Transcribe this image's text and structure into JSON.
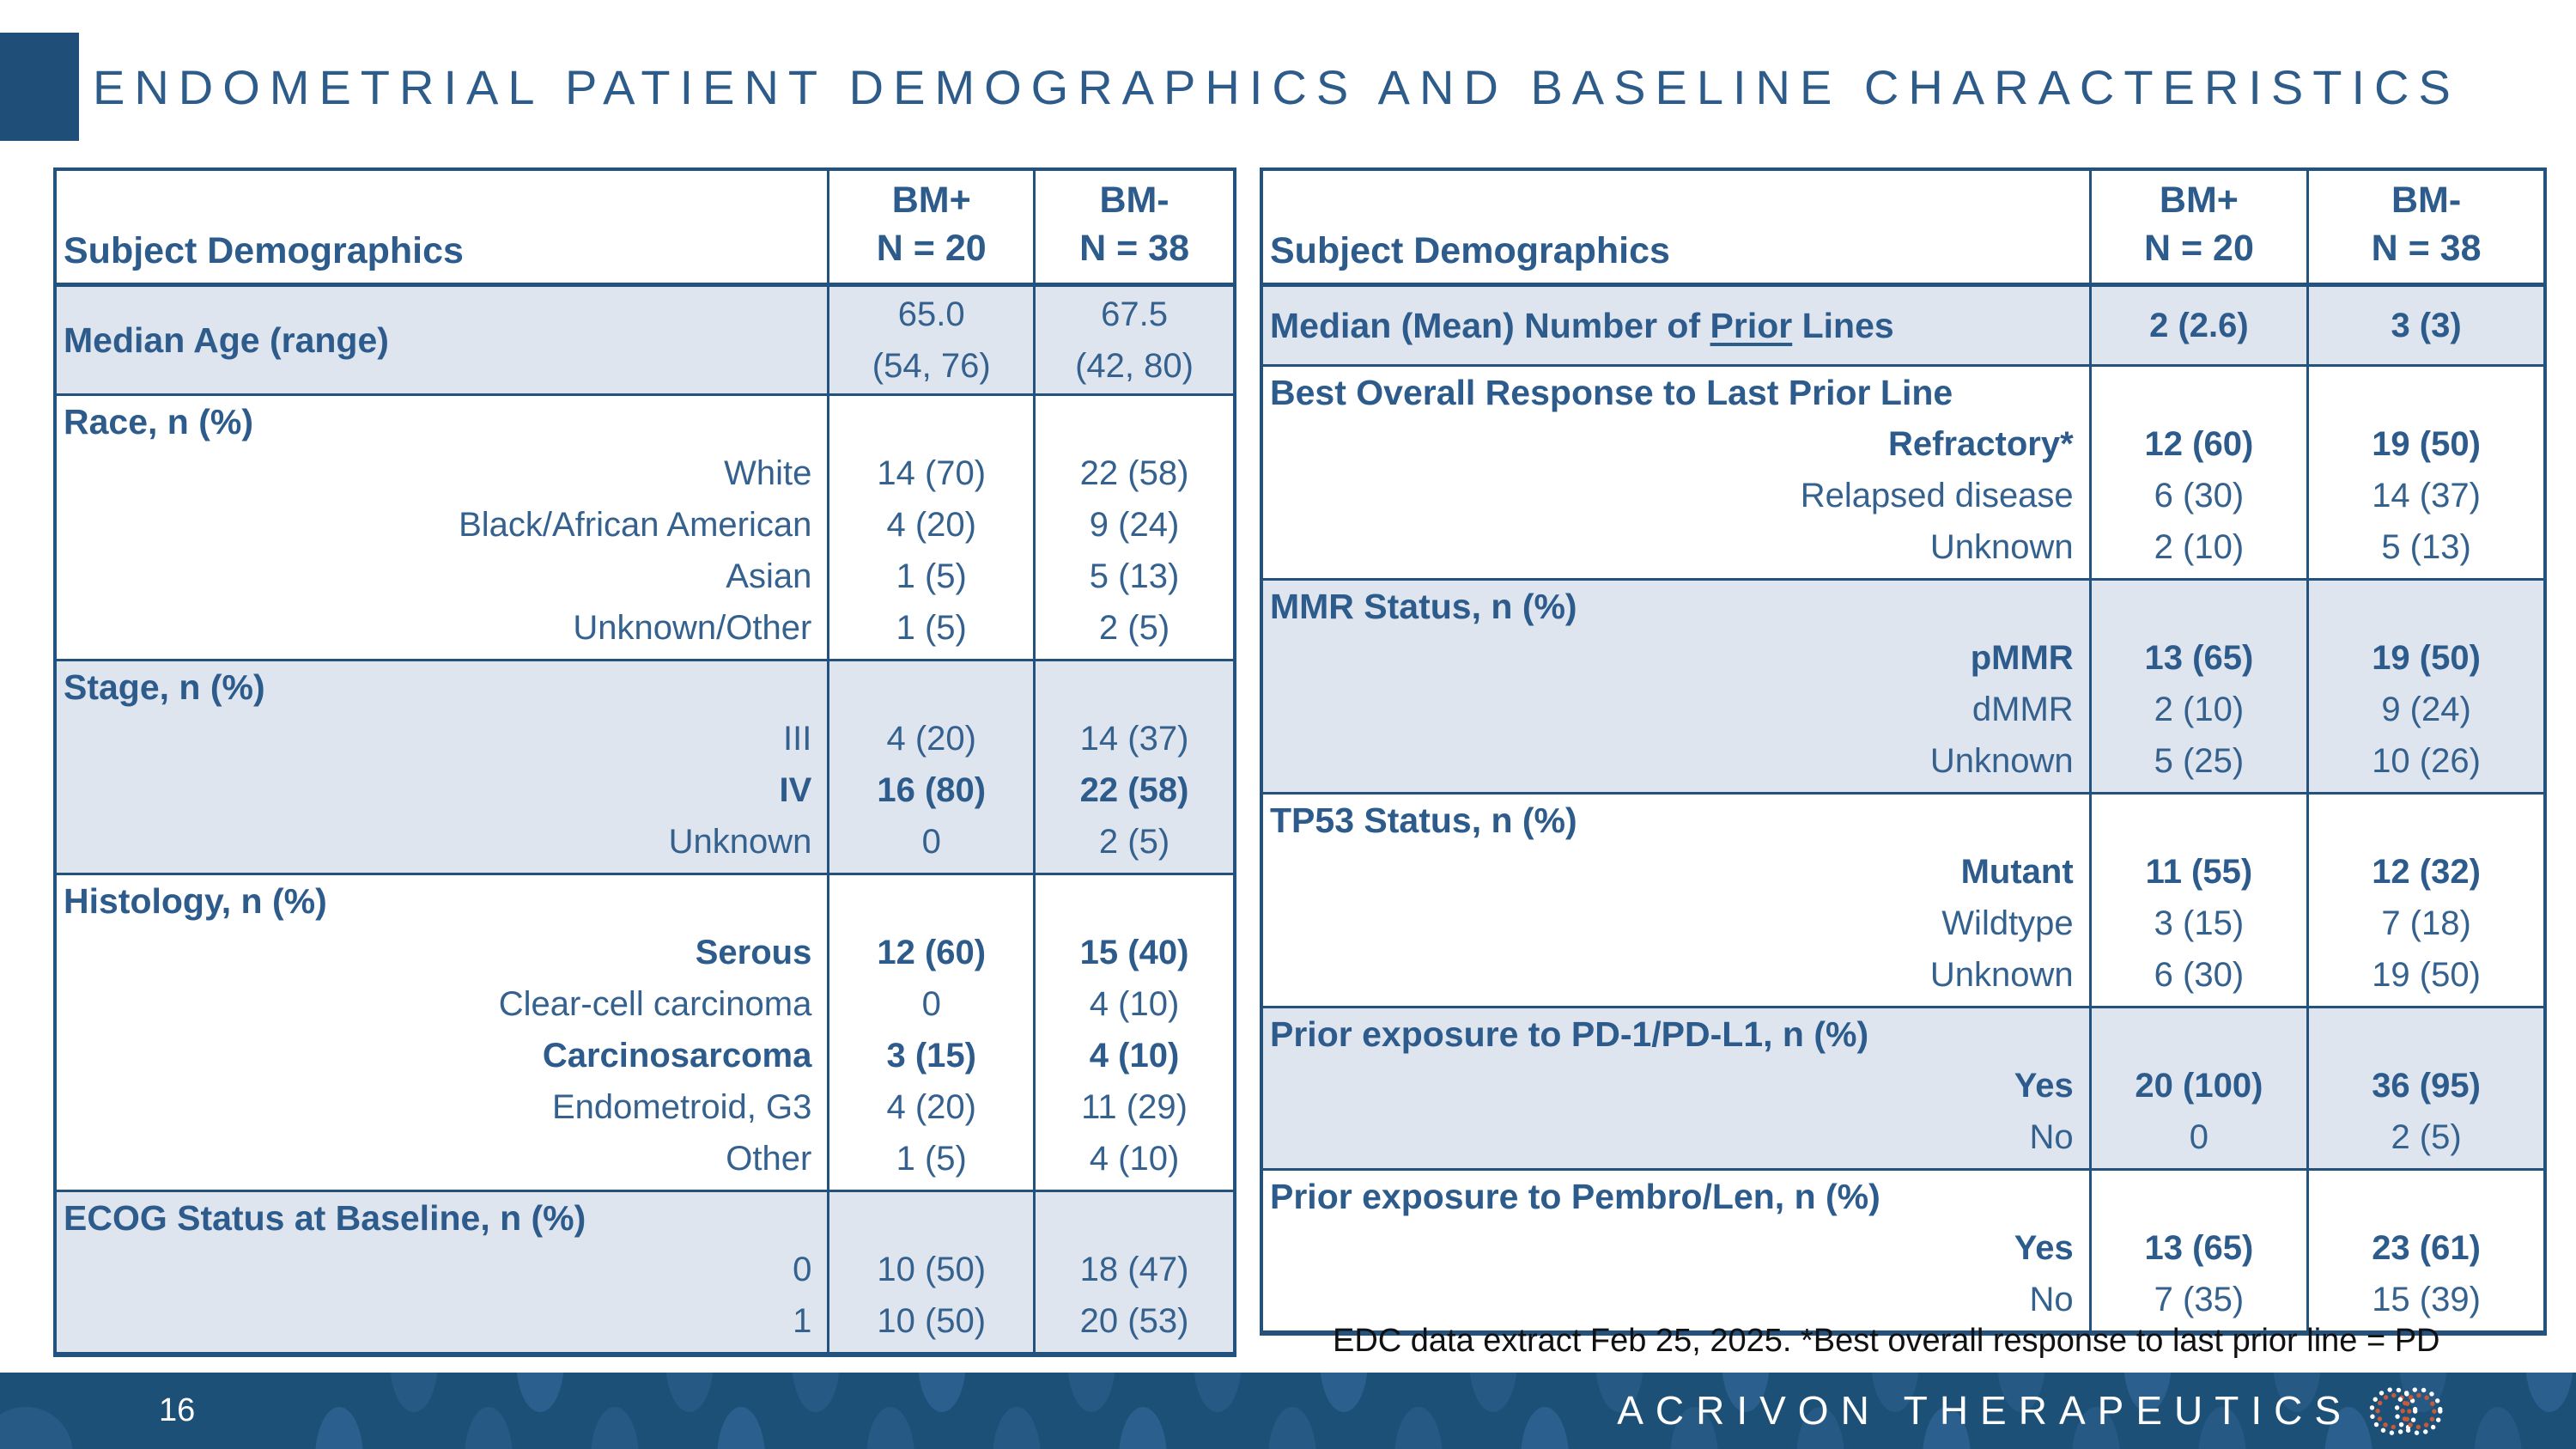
{
  "slide": {
    "title": "ENDOMETRIAL PATIENT DEMOGRAPHICS AND BASELINE CHARACTERISTICS",
    "footnote": "EDC data extract Feb 25, 2025. *Best overall response to last prior line = PD",
    "page_number": "16",
    "brand": "ACRIVON THERAPEUTICS",
    "logo_name": "interlocked-dotted-rings"
  },
  "colors": {
    "accent_navy": "#1F4E79",
    "table_border": "#24527E",
    "text_blue": "#35618E",
    "bold_blue": "#2D5C8C",
    "row_shade": "#DFE5EF",
    "footer_bg": "#1D5077",
    "footer_dot": "#2E6190",
    "logo_orange": "#C75B39"
  },
  "tables": [
    {
      "name": "subject-demographics-left",
      "header": {
        "label": "Subject Demographics",
        "col1": "BM+\nN = 20",
        "col2": "BM-\nN = 38"
      },
      "sections": [
        {
          "title": "Median Age (range)",
          "inline": true,
          "shaded": true,
          "items": [
            {
              "label": "",
              "v1": "65.0\n(54, 76)",
              "v2": "67.5\n(42, 80)"
            }
          ]
        },
        {
          "title": "Race, n (%)",
          "shaded": false,
          "items": [
            {
              "label": "White",
              "v1": "14 (70)",
              "v2": "22 (58)"
            },
            {
              "label": "Black/African American",
              "v1": "4 (20)",
              "v2": "9 (24)"
            },
            {
              "label": "Asian",
              "v1": "1 (5)",
              "v2": "5 (13)"
            },
            {
              "label": "Unknown/Other",
              "v1": "1 (5)",
              "v2": "2 (5)"
            }
          ]
        },
        {
          "title": "Stage, n (%)",
          "shaded": true,
          "items": [
            {
              "label": "III",
              "v1": "4 (20)",
              "v2": "14 (37)"
            },
            {
              "label": "IV",
              "bold": true,
              "v1": "16 (80)",
              "v2": "22 (58)"
            },
            {
              "label": "Unknown",
              "v1": "0",
              "v2": "2 (5)"
            }
          ]
        },
        {
          "title": "Histology, n (%)",
          "shaded": false,
          "items": [
            {
              "label": "Serous",
              "bold": true,
              "v1": "12 (60)",
              "v2": "15 (40)"
            },
            {
              "label": "Clear-cell carcinoma",
              "v1": "0",
              "v2": "4 (10)"
            },
            {
              "label": "Carcinosarcoma",
              "bold": true,
              "v1": "3 (15)",
              "v2": "4 (10)"
            },
            {
              "label": "Endometroid, G3",
              "v1": "4 (20)",
              "v2": "11 (29)"
            },
            {
              "label": "Other",
              "v1": "1 (5)",
              "v2": "4 (10)"
            }
          ]
        },
        {
          "title": "ECOG Status at Baseline, n (%)",
          "shaded": true,
          "items": [
            {
              "label": "0",
              "v1": "10 (50)",
              "v2": "18 (47)"
            },
            {
              "label": "1",
              "v1": "10 (50)",
              "v2": "20 (53)"
            }
          ]
        }
      ]
    },
    {
      "name": "subject-demographics-right",
      "header": {
        "label": "Subject Demographics",
        "col1": "BM+\nN = 20",
        "col2": "BM-\nN = 38"
      },
      "sections": [
        {
          "title_segments": [
            {
              "text": "Median (Mean) Number of "
            },
            {
              "text": "Prior",
              "underline": true
            },
            {
              "text": " Lines"
            }
          ],
          "inline": true,
          "shaded": true,
          "items": [
            {
              "label": "",
              "bold": true,
              "v1": "2 (2.6)",
              "v2": "3 (3)"
            }
          ]
        },
        {
          "title": "Best Overall Response to Last Prior Line",
          "shaded": false,
          "items": [
            {
              "label": "Refractory*",
              "bold": true,
              "v1": "12 (60)",
              "v2": "19 (50)"
            },
            {
              "label": "Relapsed disease",
              "v1": "6 (30)",
              "v2": "14 (37)"
            },
            {
              "label": "Unknown",
              "v1": "2 (10)",
              "v2": "5 (13)"
            }
          ]
        },
        {
          "title": "MMR Status, n (%)",
          "shaded": true,
          "items": [
            {
              "label": "pMMR",
              "bold": true,
              "v1": "13 (65)",
              "v2": "19 (50)"
            },
            {
              "label": "dMMR",
              "v1": "2 (10)",
              "v2": "9 (24)"
            },
            {
              "label": "Unknown",
              "v1": "5 (25)",
              "v2": "10 (26)"
            }
          ]
        },
        {
          "title": "TP53 Status, n (%)",
          "shaded": false,
          "items": [
            {
              "label": "Mutant",
              "bold": true,
              "v1": "11 (55)",
              "v2": "12 (32)"
            },
            {
              "label": "Wildtype",
              "v1": "3 (15)",
              "v2": "7 (18)"
            },
            {
              "label": "Unknown",
              "v1": "6 (30)",
              "v2": "19 (50)"
            }
          ]
        },
        {
          "title": "Prior exposure to PD-1/PD-L1, n (%)",
          "shaded": true,
          "items": [
            {
              "label": "Yes",
              "bold": true,
              "v1": "20 (100)",
              "v2": "36 (95)"
            },
            {
              "label": "No",
              "v1": "0",
              "v2": "2 (5)"
            }
          ]
        },
        {
          "title": "Prior exposure to Pembro/Len, n (%)",
          "shaded": false,
          "items": [
            {
              "label": "Yes",
              "bold": true,
              "v1": "13 (65)",
              "v2": "23 (61)"
            },
            {
              "label": "No",
              "v1": "7 (35)",
              "v2": "15 (39)"
            }
          ]
        }
      ]
    }
  ]
}
